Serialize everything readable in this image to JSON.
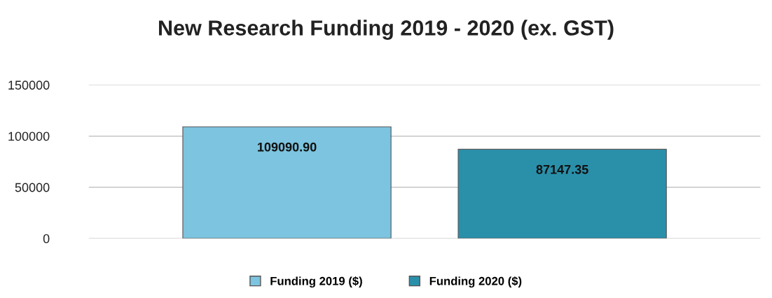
{
  "chart_data": {
    "type": "bar",
    "title": "New Research Funding 2019 - 2020 (ex. GST)",
    "categories": [
      null
    ],
    "series": [
      {
        "name": "Funding 2019 ($)",
        "color": "#7cc4df",
        "values": [
          109090.9
        ],
        "value_labels": [
          "109090.90"
        ]
      },
      {
        "name": "Funding 2020 ($)",
        "color": "#2a90aa",
        "values": [
          87147.35
        ],
        "value_labels": [
          "87147.35"
        ]
      }
    ],
    "ylim": [
      0,
      150000
    ],
    "yticks": [
      0,
      50000,
      100000,
      150000
    ],
    "grid": "y",
    "legend": "bottom"
  }
}
